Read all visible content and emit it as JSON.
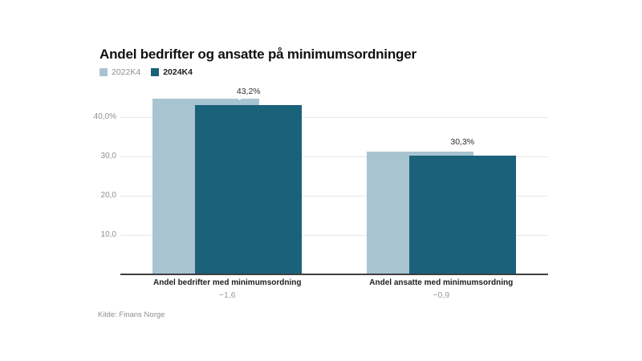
{
  "chart_data": {
    "type": "bar",
    "title": "Andel bedrifter og ansatte på minimumsordninger",
    "categories": [
      "Andel bedrifter med minimumsordning",
      "Andel ansatte med minimumsordning"
    ],
    "category_changes": [
      "−1,6",
      "−0,9"
    ],
    "series": [
      {
        "name": "2022K4",
        "color": "#a8c4d1",
        "values": [
          44.8,
          31.2
        ]
      },
      {
        "name": "2024K4",
        "color": "#1a617a",
        "values": [
          43.2,
          30.3
        ]
      }
    ],
    "data_labels": {
      "series": "2024K4",
      "labels": [
        "43,2%",
        "30,3%"
      ]
    },
    "y_axis": {
      "range": [
        0,
        46
      ],
      "ticks": [
        {
          "value": 10,
          "label": "10,0"
        },
        {
          "value": 20,
          "label": "20,0"
        },
        {
          "value": 30,
          "label": "30,0"
        },
        {
          "value": 40,
          "label": "40,0%"
        }
      ]
    },
    "grid": true,
    "legend_position": "top-left",
    "bar_style": "overlapped",
    "source": "Kilde: Finans Norge",
    "colors": {
      "series_light": "#a8c4d1",
      "series_dark": "#1a617a",
      "grid": "#e7e7e7",
      "axis": "#3f3f3f"
    }
  }
}
